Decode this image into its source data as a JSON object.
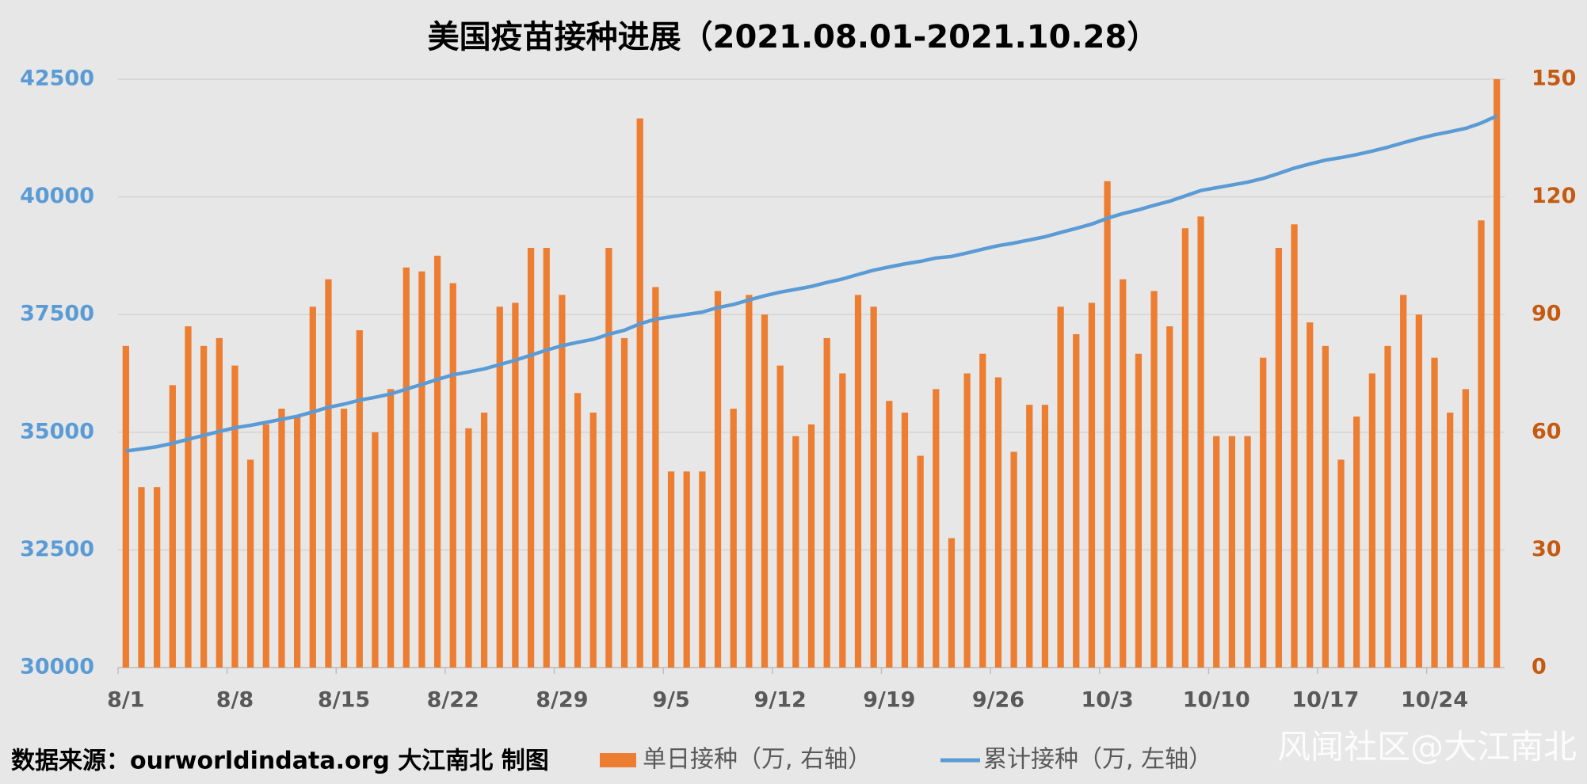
{
  "chart_data": {
    "type": "bar",
    "title": "美国疫苗接种进展（2021.08.01-2021.10.28）",
    "categories": [
      "8/1",
      null,
      null,
      null,
      null,
      null,
      null,
      "8/8",
      null,
      null,
      null,
      null,
      null,
      null,
      "8/15",
      null,
      null,
      null,
      null,
      null,
      null,
      "8/22",
      null,
      null,
      null,
      null,
      null,
      null,
      "8/29",
      null,
      null,
      null,
      null,
      null,
      null,
      "9/5",
      null,
      null,
      null,
      null,
      null,
      null,
      "9/12",
      null,
      null,
      null,
      null,
      null,
      null,
      "9/19",
      null,
      null,
      null,
      null,
      null,
      null,
      "9/26",
      null,
      null,
      null,
      null,
      null,
      null,
      "10/3",
      null,
      null,
      null,
      null,
      null,
      null,
      "10/10",
      null,
      null,
      null,
      null,
      null,
      null,
      "10/17",
      null,
      null,
      null,
      null,
      null,
      null,
      "10/24",
      null,
      null,
      null,
      null
    ],
    "series": [
      {
        "name": "单日接种（万, 右轴）",
        "color": "#ed7d31",
        "type": "bar",
        "axis": "y2",
        "values": [
          82,
          46,
          46,
          72,
          87,
          82,
          84,
          77,
          53,
          62,
          66,
          64,
          92,
          99,
          66,
          86,
          60,
          71,
          102,
          101,
          105,
          98,
          61,
          65,
          92,
          93,
          107,
          107,
          95,
          70,
          65,
          107,
          84,
          140,
          97,
          50,
          50,
          50,
          96,
          66,
          95,
          90,
          77,
          59,
          62,
          84,
          75,
          95,
          92,
          68,
          65,
          54,
          71,
          33,
          75,
          80,
          74,
          55,
          67,
          67,
          92,
          85,
          93,
          124,
          99,
          80,
          96,
          87,
          112,
          115,
          59,
          59,
          59,
          79,
          107,
          113,
          88,
          82,
          53,
          64,
          75,
          82,
          95,
          90,
          79,
          65,
          71,
          114,
          150
        ]
      },
      {
        "name": "累计接种（万, 左轴）",
        "color": "#5b9bd5",
        "type": "line",
        "axis": "y",
        "values": [
          34600,
          34646,
          34692,
          34764,
          34851,
          34933,
          35017,
          35094,
          35147,
          35209,
          35275,
          35339,
          35431,
          35530,
          35596,
          35682,
          35742,
          35813,
          35915,
          36016,
          36121,
          36219,
          36280,
          36345,
          36437,
          36530,
          36637,
          36744,
          36839,
          36909,
          36974,
          37081,
          37165,
          37305,
          37402,
          37452,
          37502,
          37552,
          37648,
          37714,
          37809,
          37899,
          37976,
          38035,
          38097,
          38181,
          38256,
          38351,
          38443,
          38511,
          38576,
          38630,
          38701,
          38734,
          38809,
          38889,
          38963,
          39018,
          39085,
          39152,
          39244,
          39329,
          39422,
          39546,
          39645,
          39725,
          39821,
          39908,
          40020,
          40135,
          40194,
          40253,
          40312,
          40391,
          40498,
          40611,
          40699,
          40781,
          40834,
          40898,
          40973,
          41055,
          41150,
          41240,
          41319,
          41384,
          41455,
          41569,
          41719
        ]
      }
    ],
    "ylim": [
      30000,
      42500
    ],
    "yticks": [
      30000,
      32500,
      35000,
      37500,
      40000,
      42500
    ],
    "ycolor": "#5b9bd5",
    "y2lim": [
      0,
      150
    ],
    "y2ticks": [
      0,
      30,
      60,
      90,
      120,
      150
    ],
    "y2color": "#c55a11",
    "grid": true,
    "legend": "bottom",
    "source": "数据来源：ourworldindata.org 大江南北 制图",
    "watermark": "风闻社区@大江南北"
  }
}
